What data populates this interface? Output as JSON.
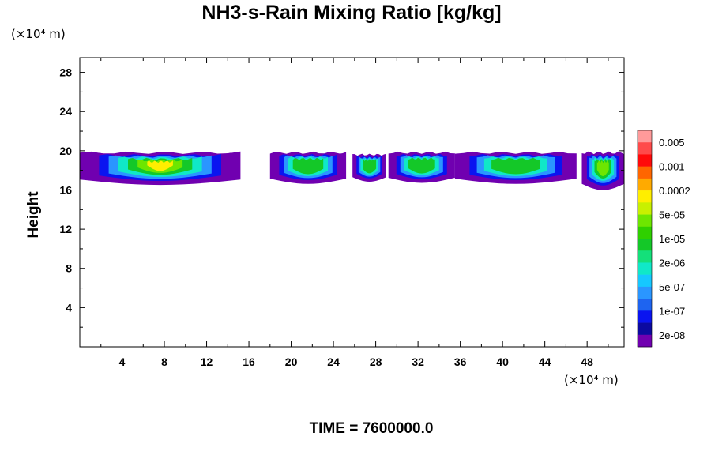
{
  "chart_data": {
    "type": "heatmap",
    "title": "NH3-s-Rain Mixing Ratio [kg/kg]",
    "xlabel": "",
    "ylabel": "Height",
    "x_unit": "(×10⁴ m)",
    "y_unit": "(×10⁴ m)",
    "xlim": [
      0,
      51.5
    ],
    "ylim": [
      0,
      29.5
    ],
    "x_ticks": [
      "4",
      "8",
      "12",
      "16",
      "20",
      "24",
      "28",
      "32",
      "36",
      "40",
      "44",
      "48"
    ],
    "y_ticks": [
      "4",
      "8",
      "12",
      "16",
      "20",
      "24",
      "28"
    ],
    "footer": "TIME = 7600000.0",
    "colorbar": {
      "labels": [
        "0.005",
        "0.001",
        "0.0002",
        "5e-05",
        "1e-05",
        "2e-06",
        "5e-07",
        "1e-07",
        "2e-08"
      ],
      "colors": [
        "#ff9a9a",
        "#ff4a4a",
        "#ff0a0a",
        "#ff6600",
        "#ffaa00",
        "#ffee00",
        "#c8f000",
        "#6ee600",
        "#2fd000",
        "#14c828",
        "#14e07a",
        "#10e8c8",
        "#16c8ff",
        "#2a96ff",
        "#1e64f0",
        "#0a14f0",
        "#0c0aa0",
        "#7000b0"
      ]
    },
    "cells": [
      {
        "x_start": 0.0,
        "x_end": 15.2,
        "y_low": 16.7,
        "y_high": 19.8,
        "max_level": "0.0002"
      },
      {
        "x_start": 18.0,
        "x_end": 25.2,
        "y_low": 16.8,
        "y_high": 19.8,
        "max_level": "1e-05"
      },
      {
        "x_start": 25.8,
        "x_end": 29.0,
        "y_low": 17.0,
        "y_high": 19.6,
        "max_level": "1e-05"
      },
      {
        "x_start": 29.2,
        "x_end": 35.5,
        "y_low": 16.9,
        "y_high": 19.8,
        "max_level": "1e-05"
      },
      {
        "x_start": 35.5,
        "x_end": 47.0,
        "y_low": 16.8,
        "y_high": 19.8,
        "max_level": "1e-05"
      },
      {
        "x_start": 47.5,
        "x_end": 51.5,
        "y_low": 16.2,
        "y_high": 19.8,
        "max_level": "5e-05"
      }
    ]
  }
}
